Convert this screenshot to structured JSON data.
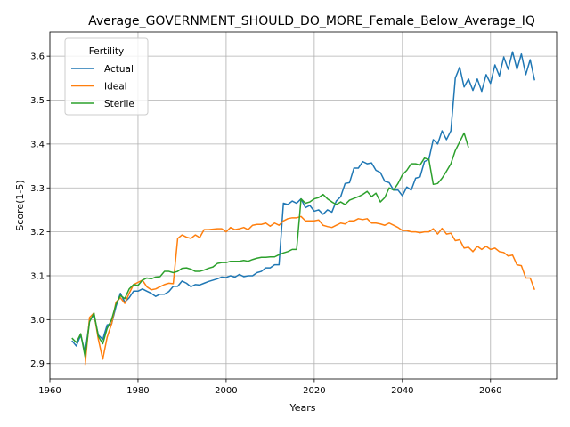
{
  "chart_data": {
    "type": "line",
    "title": "Average_GOVERNMENT_SHOULD_DO_MORE_Female_Below_Average_IQ",
    "xlabel": "Years",
    "ylabel": "Score(1-5)",
    "xlim": [
      1960,
      2075
    ],
    "ylim": [
      2.865,
      3.655
    ],
    "xticks": [
      1960,
      1980,
      2000,
      2020,
      2040,
      2060
    ],
    "yticks": [
      2.9,
      3.0,
      3.1,
      3.2,
      3.3,
      3.4,
      3.5,
      3.6
    ],
    "grid": true,
    "legend": {
      "title": "Fertility",
      "placement": "top-left"
    },
    "series": [
      {
        "name": "Actual",
        "color": "#1f77b4",
        "x": [
          1965,
          1966,
          1967,
          1968,
          1969,
          1970,
          1971,
          1972,
          1973,
          1974,
          1975,
          1976,
          1977,
          1978,
          1979,
          1980,
          1981,
          1982,
          1983,
          1984,
          1985,
          1986,
          1987,
          1988,
          1989,
          1990,
          1991,
          1992,
          1993,
          1994,
          1995,
          1996,
          1997,
          1998,
          1999,
          2000,
          2001,
          2002,
          2003,
          2004,
          2005,
          2006,
          2007,
          2008,
          2009,
          2010,
          2011,
          2012,
          2013,
          2014,
          2015,
          2016,
          2017,
          2018,
          2019,
          2020,
          2021,
          2022,
          2023,
          2024,
          2025,
          2026,
          2027,
          2028,
          2029,
          2030,
          2031,
          2032,
          2033,
          2034,
          2035,
          2036,
          2037,
          2038,
          2039,
          2040,
          2041,
          2042,
          2043,
          2044,
          2045,
          2046,
          2047,
          2048,
          2049,
          2050,
          2051,
          2052,
          2053,
          2054,
          2055,
          2056,
          2057,
          2058,
          2059,
          2060,
          2061,
          2062,
          2063,
          2064,
          2065,
          2066,
          2067,
          2068,
          2069,
          2070
        ],
        "values": [
          2.952,
          2.94,
          2.965,
          2.925,
          2.998,
          3.01,
          2.965,
          2.955,
          2.988,
          2.99,
          3.03,
          3.06,
          3.04,
          3.05,
          3.065,
          3.065,
          3.07,
          3.065,
          3.06,
          3.053,
          3.058,
          3.058,
          3.064,
          3.076,
          3.076,
          3.088,
          3.083,
          3.075,
          3.08,
          3.079,
          3.083,
          3.087,
          3.09,
          3.093,
          3.097,
          3.096,
          3.1,
          3.097,
          3.103,
          3.098,
          3.1,
          3.1,
          3.107,
          3.11,
          3.118,
          3.118,
          3.125,
          3.125,
          3.265,
          3.262,
          3.27,
          3.265,
          3.275,
          3.255,
          3.26,
          3.247,
          3.25,
          3.24,
          3.25,
          3.245,
          3.27,
          3.28,
          3.31,
          3.312,
          3.345,
          3.345,
          3.36,
          3.355,
          3.357,
          3.34,
          3.335,
          3.315,
          3.312,
          3.295,
          3.295,
          3.282,
          3.302,
          3.295,
          3.322,
          3.325,
          3.36,
          3.365,
          3.41,
          3.4,
          3.43,
          3.41,
          3.43,
          3.55,
          3.575,
          3.53,
          3.548,
          3.522,
          3.548,
          3.52,
          3.558,
          3.538,
          3.58,
          3.555,
          3.598,
          3.57,
          3.61,
          3.57,
          3.605,
          3.558,
          3.592,
          3.545
        ]
      },
      {
        "name": "Ideal",
        "color": "#ff7f0e",
        "x": [
          1968,
          1969,
          1970,
          1971,
          1972,
          1973,
          1974,
          1975,
          1976,
          1977,
          1978,
          1979,
          1980,
          1981,
          1982,
          1983,
          1984,
          1985,
          1986,
          1987,
          1988,
          1989,
          1990,
          1991,
          1992,
          1993,
          1994,
          1995,
          1996,
          1997,
          1998,
          1999,
          2000,
          2001,
          2002,
          2003,
          2004,
          2005,
          2006,
          2007,
          2008,
          2009,
          2010,
          2011,
          2012,
          2013,
          2014,
          2015,
          2016,
          2017,
          2018,
          2019,
          2020,
          2021,
          2022,
          2023,
          2024,
          2025,
          2026,
          2027,
          2028,
          2029,
          2030,
          2031,
          2032,
          2033,
          2034,
          2035,
          2036,
          2037,
          2038,
          2039,
          2040,
          2041,
          2042,
          2043,
          2044,
          2045,
          2046,
          2047,
          2048,
          2049,
          2050,
          2051,
          2052,
          2053,
          2054,
          2055,
          2056,
          2057,
          2058,
          2059,
          2060,
          2061,
          2062,
          2063,
          2064,
          2065,
          2066,
          2067,
          2068,
          2069,
          2070
        ],
        "values": [
          2.897,
          3.005,
          3.015,
          2.955,
          2.91,
          2.96,
          2.99,
          3.04,
          3.05,
          3.037,
          3.06,
          3.08,
          3.085,
          3.09,
          3.075,
          3.068,
          3.07,
          3.075,
          3.08,
          3.083,
          3.082,
          3.185,
          3.193,
          3.188,
          3.185,
          3.193,
          3.187,
          3.205,
          3.205,
          3.206,
          3.207,
          3.207,
          3.2,
          3.21,
          3.205,
          3.207,
          3.21,
          3.205,
          3.215,
          3.217,
          3.217,
          3.22,
          3.213,
          3.22,
          3.215,
          3.225,
          3.23,
          3.232,
          3.232,
          3.235,
          3.225,
          3.225,
          3.225,
          3.227,
          3.215,
          3.212,
          3.21,
          3.215,
          3.22,
          3.218,
          3.225,
          3.225,
          3.23,
          3.228,
          3.23,
          3.22,
          3.22,
          3.218,
          3.215,
          3.22,
          3.215,
          3.21,
          3.203,
          3.203,
          3.2,
          3.2,
          3.198,
          3.2,
          3.2,
          3.207,
          3.195,
          3.208,
          3.195,
          3.197,
          3.18,
          3.182,
          3.163,
          3.165,
          3.155,
          3.167,
          3.16,
          3.167,
          3.16,
          3.163,
          3.155,
          3.153,
          3.145,
          3.147,
          3.125,
          3.123,
          3.095,
          3.095,
          3.068
        ]
      },
      {
        "name": "Sterile",
        "color": "#2ca02c",
        "x": [
          1965,
          1966,
          1967,
          1968,
          1969,
          1970,
          1971,
          1972,
          1973,
          1974,
          1975,
          1976,
          1977,
          1978,
          1979,
          1980,
          1981,
          1982,
          1983,
          1984,
          1985,
          1986,
          1987,
          1988,
          1989,
          1990,
          1991,
          1992,
          1993,
          1994,
          1995,
          1996,
          1997,
          1998,
          1999,
          2000,
          2001,
          2002,
          2003,
          2004,
          2005,
          2006,
          2007,
          2008,
          2009,
          2010,
          2011,
          2012,
          2013,
          2014,
          2015,
          2016,
          2017,
          2018,
          2019,
          2020,
          2021,
          2022,
          2023,
          2024,
          2025,
          2026,
          2027,
          2028,
          2029,
          2030,
          2031,
          2032,
          2033,
          2034,
          2035,
          2036,
          2037,
          2038,
          2039,
          2040,
          2041,
          2042,
          2043,
          2044,
          2045,
          2046,
          2047,
          2048,
          2049,
          2050,
          2051,
          2052,
          2053,
          2054,
          2055
        ],
        "values": [
          2.958,
          2.948,
          2.968,
          2.915,
          2.995,
          3.015,
          2.962,
          2.945,
          2.98,
          3.0,
          3.035,
          3.055,
          3.048,
          3.07,
          3.08,
          3.078,
          3.09,
          3.095,
          3.093,
          3.097,
          3.098,
          3.11,
          3.11,
          3.107,
          3.11,
          3.117,
          3.118,
          3.115,
          3.11,
          3.11,
          3.113,
          3.117,
          3.12,
          3.128,
          3.13,
          3.13,
          3.133,
          3.133,
          3.133,
          3.135,
          3.133,
          3.137,
          3.14,
          3.142,
          3.142,
          3.143,
          3.143,
          3.148,
          3.152,
          3.155,
          3.16,
          3.16,
          3.275,
          3.265,
          3.268,
          3.275,
          3.278,
          3.285,
          3.275,
          3.268,
          3.262,
          3.268,
          3.262,
          3.272,
          3.276,
          3.28,
          3.285,
          3.292,
          3.28,
          3.288,
          3.268,
          3.278,
          3.3,
          3.295,
          3.31,
          3.33,
          3.34,
          3.355,
          3.355,
          3.352,
          3.368,
          3.365,
          3.308,
          3.31,
          3.322,
          3.338,
          3.355,
          3.385,
          3.405,
          3.425,
          3.392
        ]
      }
    ]
  }
}
